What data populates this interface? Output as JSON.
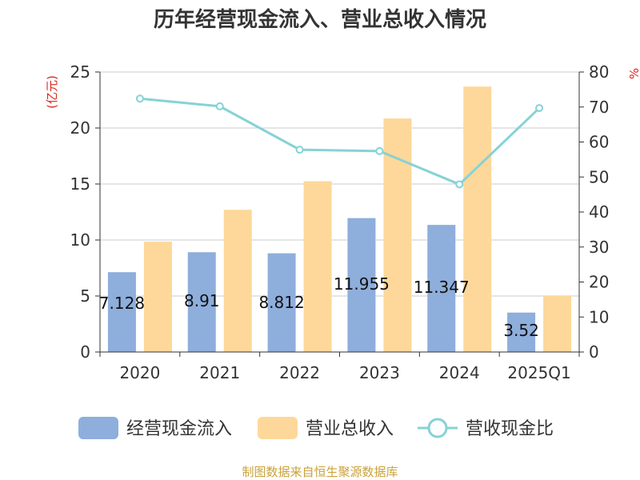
{
  "chart_data": {
    "type": "bar",
    "title": "历年经营现金流入、营业总收入情况",
    "categories": [
      "2020",
      "2021",
      "2022",
      "2023",
      "2024",
      "2025Q1"
    ],
    "y_left": {
      "unit_label": "(亿元)",
      "ylim": [
        0,
        25
      ],
      "ticks": [
        "0",
        "5",
        "10",
        "15",
        "20",
        "25"
      ]
    },
    "y_right": {
      "unit_label": "%",
      "ylim": [
        0,
        80
      ],
      "ticks": [
        "0",
        "10",
        "20",
        "30",
        "40",
        "50",
        "60",
        "70",
        "80"
      ]
    },
    "grid": true,
    "legend_position": "bottom",
    "series": [
      {
        "name": "经营现金流入",
        "kind": "bar",
        "axis": "left",
        "color": "#8eaedc",
        "values": [
          7.128,
          8.91,
          8.812,
          11.955,
          11.347,
          3.52
        ],
        "labels": [
          "7.128",
          "8.91",
          "8.812",
          "11.955",
          "11.347",
          "3.52"
        ]
      },
      {
        "name": "营业总收入",
        "kind": "bar",
        "axis": "left",
        "color": "#fdd89a",
        "values": [
          9.85,
          12.7,
          15.25,
          20.85,
          23.7,
          5.05
        ]
      },
      {
        "name": "营收现金比",
        "kind": "line",
        "axis": "right",
        "color": "#86d2d6",
        "values": [
          72.4,
          70.2,
          57.8,
          57.4,
          47.9,
          69.7
        ]
      }
    ],
    "source": "制图数据来自恒生聚源数据库"
  }
}
